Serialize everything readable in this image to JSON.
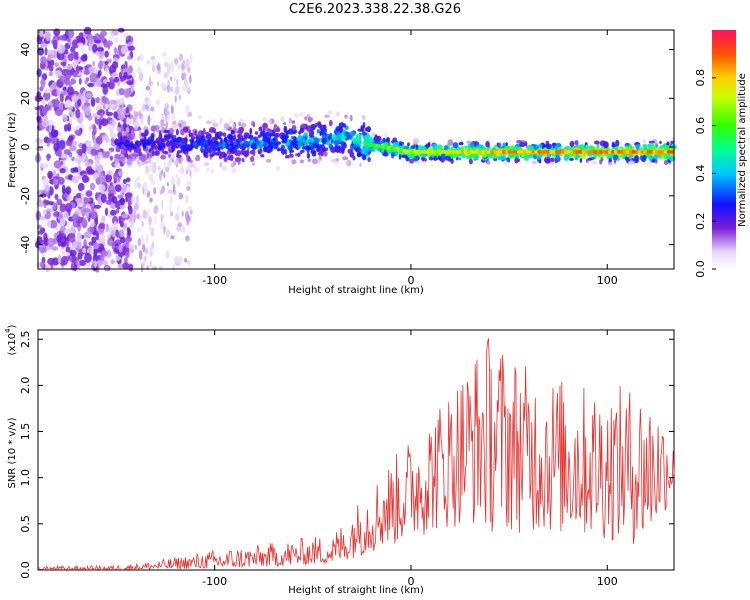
{
  "title": "C2E6.2023.338.22.38.G26",
  "chart_data": [
    {
      "type": "heatmap",
      "xlabel": "Height of straight line (km)",
      "ylabel": "Frequency (Hz)",
      "xlim": [
        -190,
        134
      ],
      "ylim": [
        -50,
        48
      ],
      "xticks": [
        -100,
        0,
        100
      ],
      "yticks": [
        -40,
        -20,
        0,
        20,
        40
      ],
      "colorbar": {
        "label": "Normalized spectral amplitude",
        "range": [
          0.0,
          1.0
        ],
        "ticks": [
          "0.0",
          "0.2",
          "0.4",
          "0.6",
          "0.8"
        ]
      },
      "ridge": [
        {
          "x": -150,
          "f": 1,
          "amp": 0.25
        },
        {
          "x": -130,
          "f": 2,
          "amp": 0.3
        },
        {
          "x": -100,
          "f": 1,
          "amp": 0.35
        },
        {
          "x": -70,
          "f": 2,
          "amp": 0.38
        },
        {
          "x": -50,
          "f": 3,
          "amp": 0.45
        },
        {
          "x": -35,
          "f": 4,
          "amp": 0.5
        },
        {
          "x": -20,
          "f": 1,
          "amp": 0.62
        },
        {
          "x": 0,
          "f": -2,
          "amp": 0.75
        },
        {
          "x": 50,
          "f": -2,
          "amp": 0.85
        },
        {
          "x": 134,
          "f": -2,
          "amp": 0.9
        }
      ]
    },
    {
      "type": "line",
      "xlabel": "Height of straight line (km)",
      "ylabel": "SNR (10 * v/v)",
      "ylabel_multiplier": "(x10",
      "ylabel_exponent": "4",
      "ylabel_close": ")",
      "xlim": [
        -190,
        134
      ],
      "ylim": [
        0,
        2.6
      ],
      "xticks": [
        -100,
        0,
        100
      ],
      "yticks": [
        0.0,
        0.5,
        1.0,
        1.5,
        2.0,
        2.5
      ],
      "series_color": "#e8302e",
      "envelope": [
        {
          "x": -190,
          "lo": 0.0,
          "hi": 0.04
        },
        {
          "x": -150,
          "lo": 0.0,
          "hi": 0.05
        },
        {
          "x": -130,
          "lo": 0.01,
          "hi": 0.1
        },
        {
          "x": -100,
          "lo": 0.02,
          "hi": 0.22
        },
        {
          "x": -70,
          "lo": 0.04,
          "hi": 0.3
        },
        {
          "x": -40,
          "lo": 0.08,
          "hi": 0.4
        },
        {
          "x": -25,
          "lo": 0.15,
          "hi": 0.8
        },
        {
          "x": -10,
          "lo": 0.25,
          "hi": 1.2
        },
        {
          "x": 10,
          "lo": 0.4,
          "hi": 1.7
        },
        {
          "x": 30,
          "lo": 0.5,
          "hi": 2.3
        },
        {
          "x": 40,
          "lo": 0.4,
          "hi": 2.6
        },
        {
          "x": 60,
          "lo": 0.4,
          "hi": 2.2
        },
        {
          "x": 90,
          "lo": 0.35,
          "hi": 2.0
        },
        {
          "x": 120,
          "lo": 0.25,
          "hi": 2.0
        },
        {
          "x": 134,
          "lo": 0.8,
          "hi": 1.5
        }
      ]
    }
  ]
}
